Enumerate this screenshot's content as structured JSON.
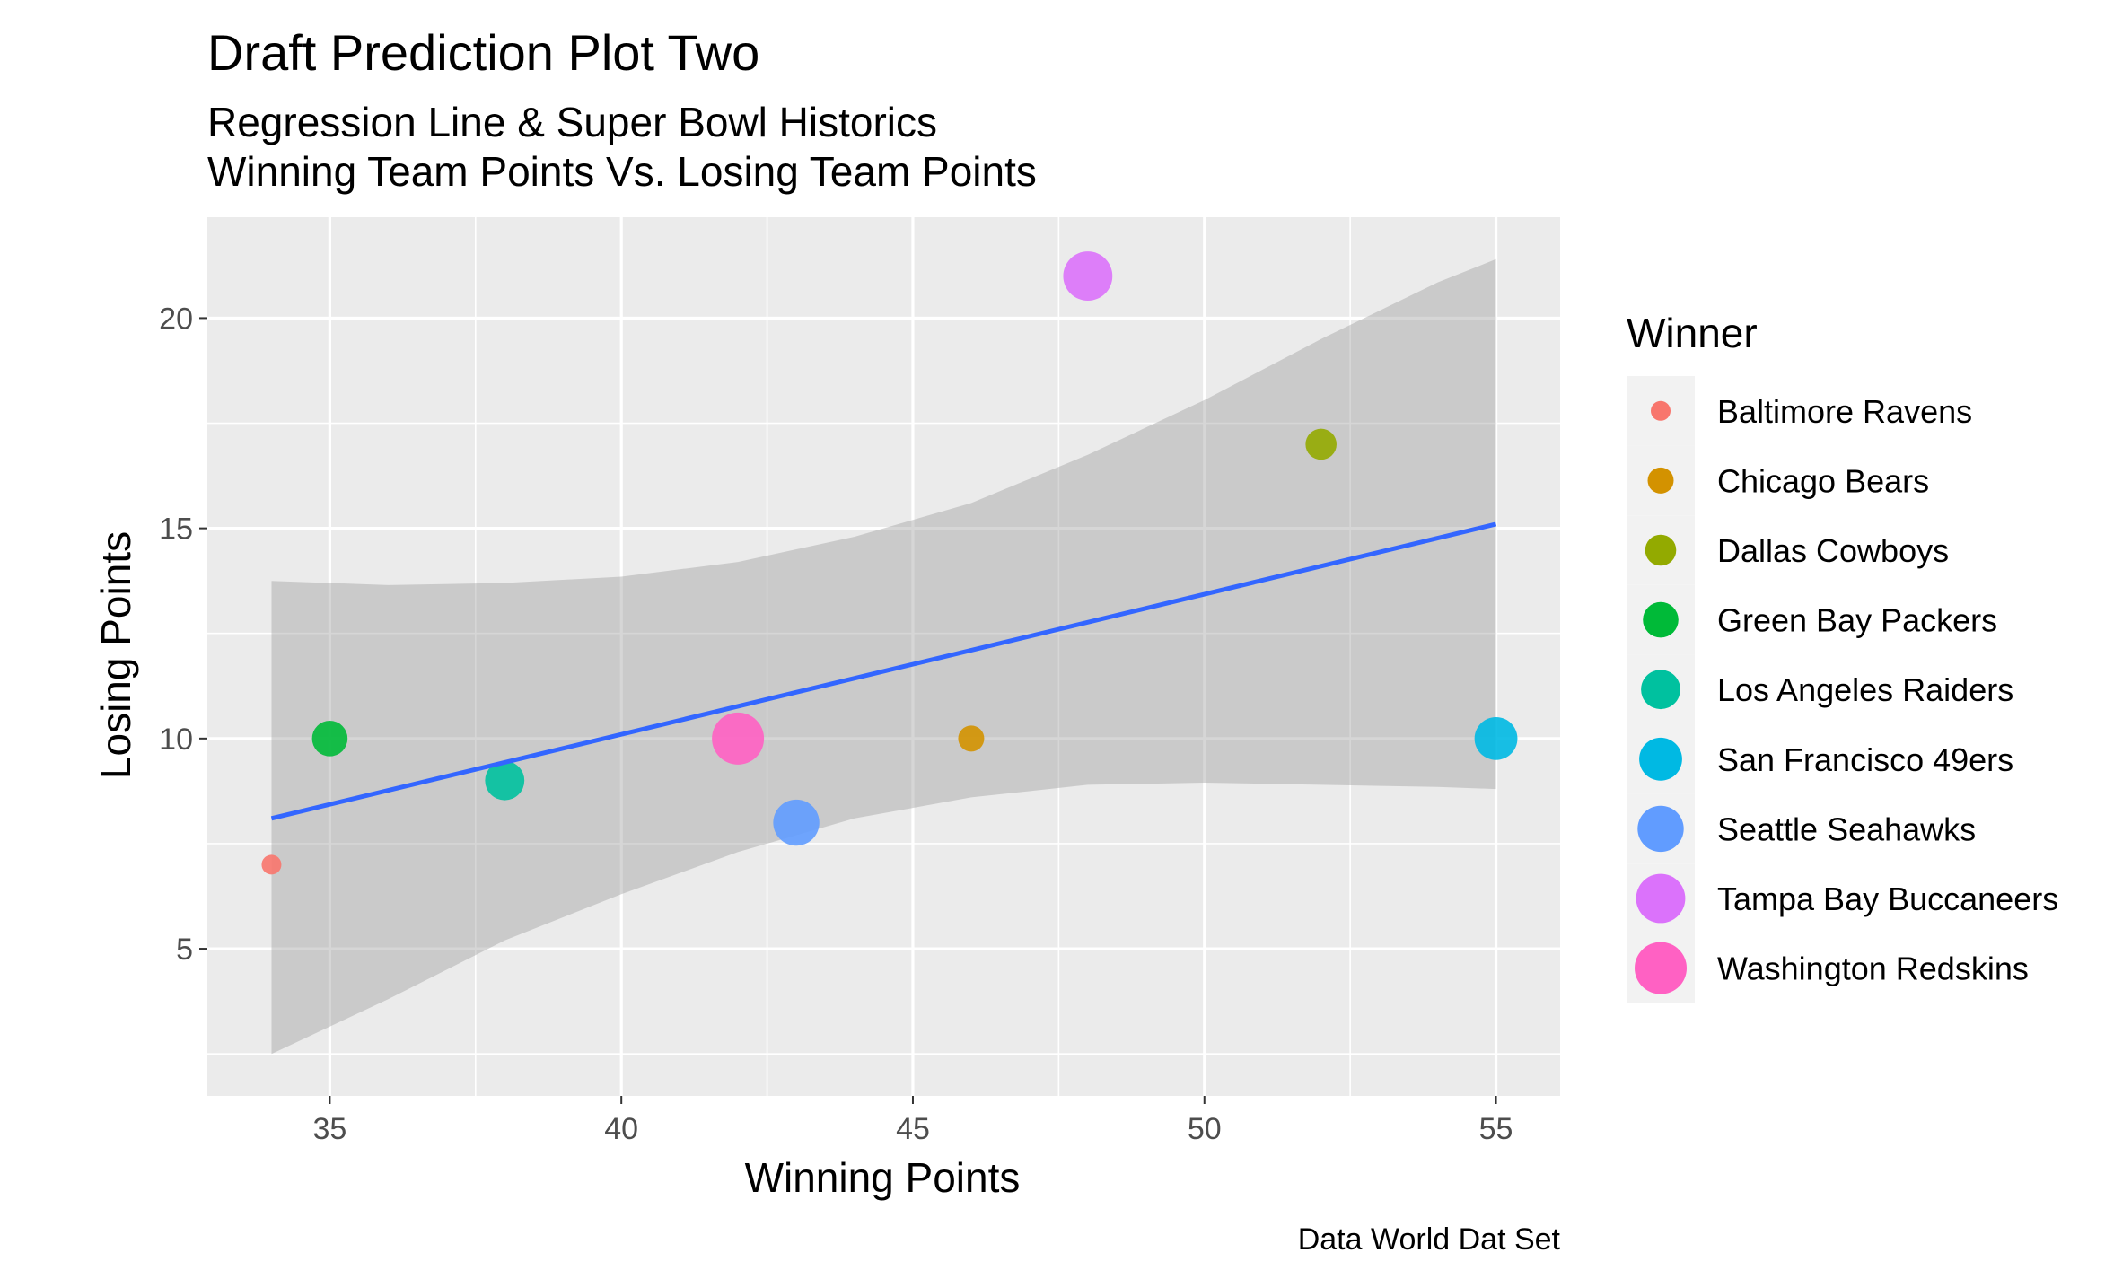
{
  "chart_data": {
    "type": "scatter",
    "title": "Draft Prediction Plot Two",
    "subtitle_lines": [
      "Regression Line & Super Bowl Historics",
      "Winning Team Points Vs. Losing Team Points"
    ],
    "xlabel": "Winning Points",
    "ylabel": "Losing Points",
    "caption": "Data World Dat Set",
    "xlim": [
      32.9,
      56.1
    ],
    "ylim": [
      1.5,
      22.4
    ],
    "x_ticks": [
      35,
      40,
      45,
      50,
      55
    ],
    "x_tick_labels": [
      "35",
      "40",
      "45",
      "50",
      "55"
    ],
    "y_ticks": [
      5,
      10,
      15,
      20
    ],
    "y_tick_labels": [
      "5",
      "10",
      "15",
      "20"
    ],
    "grid": true,
    "legend": {
      "title": "Winner",
      "placement": "right",
      "entries": [
        {
          "label": "Baltimore Ravens",
          "color": "#F8766D"
        },
        {
          "label": "Chicago Bears",
          "color": "#D39200"
        },
        {
          "label": "Dallas Cowboys",
          "color": "#93AA00"
        },
        {
          "label": "Green Bay Packers",
          "color": "#00BA38"
        },
        {
          "label": "Los Angeles Raiders",
          "color": "#00C19F"
        },
        {
          "label": "San Francisco 49ers",
          "color": "#00B9E3"
        },
        {
          "label": "Seattle Seahawks",
          "color": "#619CFF"
        },
        {
          "label": "Tampa Bay Buccaneers",
          "color": "#DB72FB"
        },
        {
          "label": "Washington Redskins",
          "color": "#FF61C3"
        }
      ]
    },
    "points": [
      {
        "winner": "Baltimore Ravens",
        "x": 34,
        "y": 7
      },
      {
        "winner": "Green Bay Packers",
        "x": 35,
        "y": 10
      },
      {
        "winner": "Los Angeles Raiders",
        "x": 38,
        "y": 9
      },
      {
        "winner": "Washington Redskins",
        "x": 42,
        "y": 10
      },
      {
        "winner": "Seattle Seahawks",
        "x": 43,
        "y": 8
      },
      {
        "winner": "Chicago Bears",
        "x": 46,
        "y": 10
      },
      {
        "winner": "Tampa Bay Buccaneers",
        "x": 48,
        "y": 21
      },
      {
        "winner": "Dallas Cowboys",
        "x": 52,
        "y": 17
      },
      {
        "winner": "San Francisco 49ers",
        "x": 55,
        "y": 10
      }
    ],
    "regression": {
      "method": "linear",
      "color": "#3366FF",
      "line": {
        "x": [
          34,
          55
        ],
        "y": [
          8.1,
          15.1
        ]
      },
      "ci_band": {
        "x": [
          34,
          36,
          38,
          40,
          42,
          44,
          46,
          48,
          50,
          52,
          54,
          55
        ],
        "upper": [
          13.75,
          13.65,
          13.7,
          13.85,
          14.2,
          14.8,
          15.6,
          16.75,
          18.05,
          19.5,
          20.85,
          21.4
        ],
        "lower": [
          2.5,
          3.8,
          5.2,
          6.3,
          7.3,
          8.1,
          8.6,
          8.9,
          8.95,
          8.9,
          8.85,
          8.8
        ]
      },
      "band_color": "#999999"
    }
  }
}
